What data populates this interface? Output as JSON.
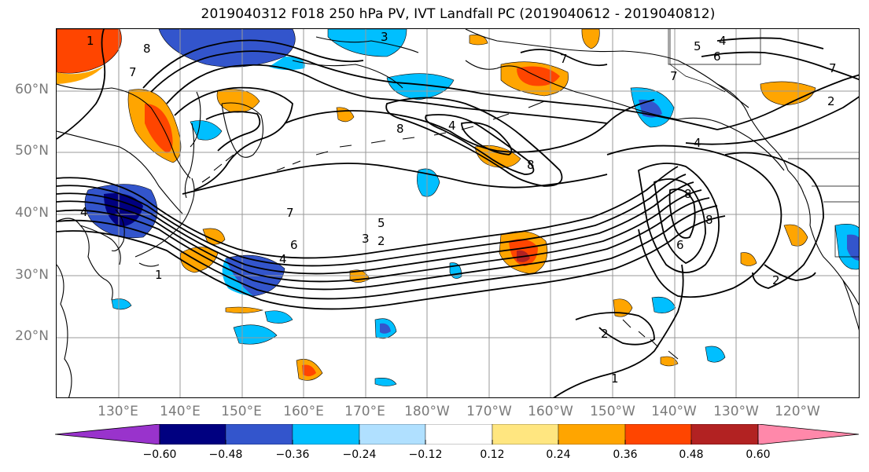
{
  "title": "2019040312 F018 250 hPa PV, IVT Landfall PC (2019040612 - 2019040812)",
  "lat_labels": [
    "60°N",
    "50°N",
    "40°N",
    "30°N",
    "20°N"
  ],
  "lon_labels": [
    "130°E",
    "140°E",
    "150°E",
    "160°E",
    "170°E",
    "180°W",
    "170°W",
    "160°W",
    "150°W",
    "140°W",
    "130°W",
    "120°W"
  ],
  "contour_labels": [
    "1",
    "2",
    "3",
    "4",
    "5",
    "6",
    "7",
    "8"
  ],
  "colorbar": {
    "tick_labels": [
      "−0.60",
      "−0.48",
      "−0.36",
      "−0.24",
      "−0.12",
      "0.12",
      "0.24",
      "0.36",
      "0.48",
      "0.60"
    ],
    "colors": [
      "#9933cc",
      "#000080",
      "#3355cc",
      "#00bfff",
      "#b0e0ff",
      "#ffffff",
      "#ffe680",
      "#ffa500",
      "#ff4500",
      "#b22222",
      "#ff88aa"
    ]
  }
}
